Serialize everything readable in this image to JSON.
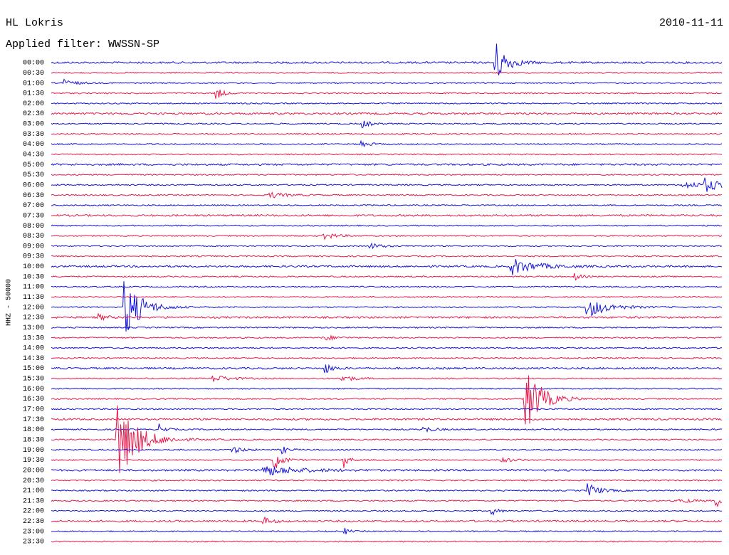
{
  "header": {
    "station": "HL Lokris",
    "date": "2010-11-11",
    "filter": "Applied filter: WWSSN-SP"
  },
  "y_axis_label": "HHZ - 50000",
  "rows": [
    "00:00",
    "00:30",
    "01:00",
    "01:30",
    "02:00",
    "02:30",
    "03:00",
    "03:30",
    "04:00",
    "04:30",
    "05:00",
    "05:30",
    "06:00",
    "06:30",
    "07:00",
    "07:30",
    "08:00",
    "08:30",
    "09:00",
    "09:30",
    "10:00",
    "10:30",
    "11:00",
    "11:30",
    "12:00",
    "12:30",
    "13:00",
    "13:30",
    "14:00",
    "14:30",
    "15:00",
    "15:30",
    "16:00",
    "16:30",
    "17:00",
    "17:30",
    "18:00",
    "18:30",
    "19:00",
    "19:30",
    "20:00",
    "20:30",
    "21:00",
    "21:30",
    "22:00",
    "22:30",
    "23:00",
    "23:30"
  ]
}
